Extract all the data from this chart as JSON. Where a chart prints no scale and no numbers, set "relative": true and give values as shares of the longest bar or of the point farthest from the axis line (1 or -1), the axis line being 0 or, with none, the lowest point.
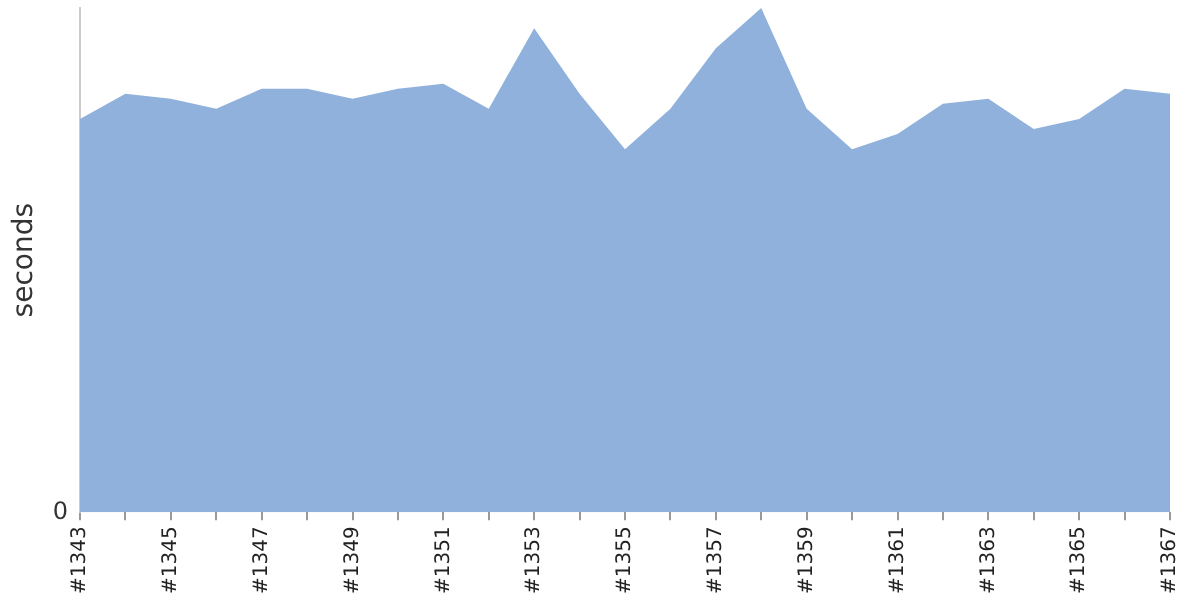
{
  "chart_data": {
    "type": "area",
    "relative": true,
    "ylabel": "seconds",
    "color": "#8fb1db",
    "categories": [
      "#1343",
      null,
      "#1345",
      null,
      "#1347",
      null,
      "#1349",
      null,
      "#1351",
      null,
      "#1353",
      null,
      "#1355",
      null,
      "#1357",
      null,
      "#1359",
      null,
      "#1361",
      null,
      "#1363",
      null,
      "#1365",
      null,
      "#1367"
    ],
    "values": [
      0.78,
      0.83,
      0.82,
      0.8,
      0.84,
      0.84,
      0.82,
      0.84,
      0.85,
      0.8,
      0.96,
      0.83,
      0.72,
      0.8,
      0.92,
      1,
      0.8,
      0.72,
      0.75,
      0.81,
      0.82,
      0.76,
      0.78,
      0.84,
      0.83
    ],
    "annotations": [
      "0"
    ],
    "legend": false
  }
}
